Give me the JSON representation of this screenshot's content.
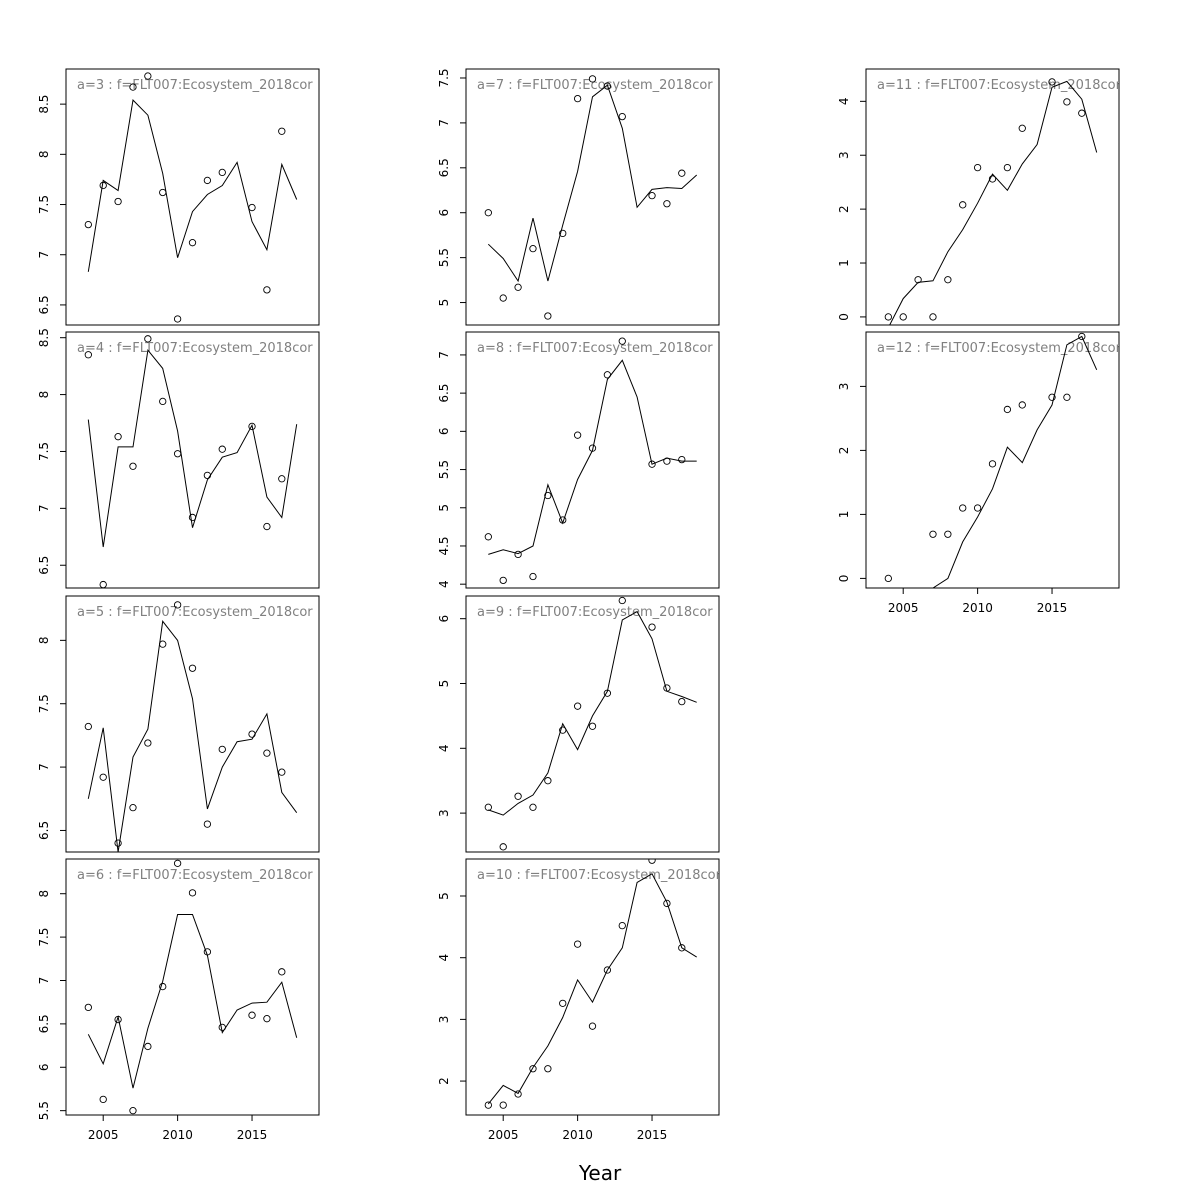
{
  "xlabel": "Year",
  "chart_data": [
    {
      "type": "scatter",
      "title": "a=3  :  f=FLT007:Ecosystem_2018cor",
      "ylim": [
        6.3,
        8.85
      ],
      "yticks": [
        6.5,
        7.0,
        7.5,
        8.0,
        8.5
      ],
      "xlim": [
        2002.5,
        2019.5
      ],
      "xticks": [],
      "points": [
        [
          2004,
          7.3
        ],
        [
          2005,
          7.69
        ],
        [
          2006,
          7.53
        ],
        [
          2007,
          8.67
        ],
        [
          2008,
          8.78
        ],
        [
          2009,
          7.62
        ],
        [
          2010,
          6.36
        ],
        [
          2011,
          7.12
        ],
        [
          2012,
          7.74
        ],
        [
          2013,
          7.82
        ],
        [
          2015,
          7.47
        ],
        [
          2016,
          6.65
        ],
        [
          2017,
          8.23
        ]
      ],
      "fit": [
        [
          2004,
          6.83
        ],
        [
          2005,
          7.74
        ],
        [
          2006,
          7.64
        ],
        [
          2007,
          8.54
        ],
        [
          2008,
          8.39
        ],
        [
          2009,
          7.81
        ],
        [
          2010,
          6.97
        ],
        [
          2011,
          7.43
        ],
        [
          2012,
          7.6
        ],
        [
          2013,
          7.69
        ],
        [
          2014,
          7.92
        ],
        [
          2015,
          7.33
        ],
        [
          2016,
          7.05
        ],
        [
          2017,
          7.9
        ],
        [
          2018,
          7.55
        ]
      ]
    },
    {
      "type": "scatter",
      "title": "a=4  :  f=FLT007:Ecosystem_2018cor",
      "ylim": [
        6.3,
        8.55
      ],
      "yticks": [
        6.5,
        7.0,
        7.5,
        8.0,
        8.5
      ],
      "xlim": [
        2002.5,
        2019.5
      ],
      "xticks": [],
      "points": [
        [
          2004,
          8.35
        ],
        [
          2005,
          6.33
        ],
        [
          2006,
          7.63
        ],
        [
          2007,
          7.37
        ],
        [
          2008,
          8.49
        ],
        [
          2009,
          7.94
        ],
        [
          2010,
          7.48
        ],
        [
          2011,
          6.92
        ],
        [
          2012,
          7.29
        ],
        [
          2013,
          7.52
        ],
        [
          2015,
          7.72
        ],
        [
          2016,
          6.84
        ],
        [
          2017,
          7.26
        ]
      ],
      "fit": [
        [
          2004,
          7.78
        ],
        [
          2005,
          6.66
        ],
        [
          2006,
          7.54
        ],
        [
          2007,
          7.54
        ],
        [
          2008,
          8.39
        ],
        [
          2009,
          8.23
        ],
        [
          2010,
          7.68
        ],
        [
          2011,
          6.83
        ],
        [
          2012,
          7.25
        ],
        [
          2013,
          7.45
        ],
        [
          2014,
          7.49
        ],
        [
          2015,
          7.73
        ],
        [
          2016,
          7.1
        ],
        [
          2017,
          6.92
        ],
        [
          2018,
          7.74
        ]
      ]
    },
    {
      "type": "scatter",
      "title": "a=5  :  f=FLT007:Ecosystem_2018cor",
      "ylim": [
        6.33,
        8.35
      ],
      "yticks": [
        6.5,
        7.0,
        7.5,
        8.0
      ],
      "xlim": [
        2002.5,
        2019.5
      ],
      "xticks": [],
      "points": [
        [
          2004,
          7.32
        ],
        [
          2005,
          6.92
        ],
        [
          2006,
          6.4
        ],
        [
          2007,
          6.68
        ],
        [
          2008,
          7.19
        ],
        [
          2009,
          7.97
        ],
        [
          2010,
          8.28
        ],
        [
          2011,
          7.78
        ],
        [
          2012,
          6.55
        ],
        [
          2013,
          7.14
        ],
        [
          2015,
          7.26
        ],
        [
          2016,
          7.11
        ],
        [
          2017,
          6.96
        ]
      ],
      "fit": [
        [
          2004,
          6.75
        ],
        [
          2005,
          7.31
        ],
        [
          2006,
          6.33
        ],
        [
          2007,
          7.08
        ],
        [
          2008,
          7.3
        ],
        [
          2009,
          8.15
        ],
        [
          2010,
          8.0
        ],
        [
          2011,
          7.54
        ],
        [
          2012,
          6.67
        ],
        [
          2013,
          7.0
        ],
        [
          2014,
          7.2
        ],
        [
          2015,
          7.22
        ],
        [
          2016,
          7.42
        ],
        [
          2017,
          6.8
        ],
        [
          2018,
          6.64
        ]
      ]
    },
    {
      "type": "scatter",
      "title": "a=6  :  f=FLT007:Ecosystem_2018cor",
      "ylim": [
        5.45,
        8.4
      ],
      "yticks": [
        5.5,
        6.0,
        6.5,
        7.0,
        7.5,
        8.0
      ],
      "xlim": [
        2002.5,
        2019.5
      ],
      "xticks": [
        2005,
        2010,
        2015
      ],
      "points": [
        [
          2004,
          6.69
        ],
        [
          2005,
          5.63
        ],
        [
          2006,
          6.55
        ],
        [
          2007,
          5.5
        ],
        [
          2008,
          6.24
        ],
        [
          2009,
          6.93
        ],
        [
          2010,
          8.35
        ],
        [
          2011,
          8.01
        ],
        [
          2012,
          7.33
        ],
        [
          2013,
          6.46
        ],
        [
          2015,
          6.6
        ],
        [
          2016,
          6.56
        ],
        [
          2017,
          7.1
        ]
      ],
      "fit": [
        [
          2004,
          6.38
        ],
        [
          2005,
          6.04
        ],
        [
          2006,
          6.58
        ],
        [
          2007,
          5.76
        ],
        [
          2008,
          6.45
        ],
        [
          2009,
          6.99
        ],
        [
          2010,
          7.76
        ],
        [
          2011,
          7.76
        ],
        [
          2012,
          7.29
        ],
        [
          2013,
          6.4
        ],
        [
          2014,
          6.66
        ],
        [
          2015,
          6.74
        ],
        [
          2016,
          6.75
        ],
        [
          2017,
          6.98
        ],
        [
          2018,
          6.34
        ]
      ]
    },
    {
      "type": "scatter",
      "title": "a=7  :  f=FLT007:Ecosystem_2018cor",
      "ylim": [
        4.75,
        7.6
      ],
      "yticks": [
        5.0,
        5.5,
        6.0,
        6.5,
        7.0,
        7.5
      ],
      "xlim": [
        2002.5,
        2019.5
      ],
      "xticks": [],
      "points": [
        [
          2004,
          6.0
        ],
        [
          2005,
          5.05
        ],
        [
          2006,
          5.17
        ],
        [
          2007,
          5.6
        ],
        [
          2008,
          4.85
        ],
        [
          2009,
          5.77
        ],
        [
          2010,
          7.27
        ],
        [
          2011,
          7.49
        ],
        [
          2012,
          7.41
        ],
        [
          2013,
          7.07
        ],
        [
          2015,
          6.19
        ],
        [
          2016,
          6.1
        ],
        [
          2017,
          6.44
        ]
      ],
      "fit": [
        [
          2004,
          5.65
        ],
        [
          2005,
          5.49
        ],
        [
          2006,
          5.24
        ],
        [
          2007,
          5.94
        ],
        [
          2008,
          5.24
        ],
        [
          2009,
          5.86
        ],
        [
          2010,
          6.46
        ],
        [
          2011,
          7.29
        ],
        [
          2012,
          7.42
        ],
        [
          2013,
          6.94
        ],
        [
          2014,
          6.06
        ],
        [
          2015,
          6.26
        ],
        [
          2016,
          6.28
        ],
        [
          2017,
          6.27
        ],
        [
          2018,
          6.42
        ]
      ]
    },
    {
      "type": "scatter",
      "title": "a=8  :  f=FLT007:Ecosystem_2018cor",
      "ylim": [
        3.95,
        7.3
      ],
      "yticks": [
        4.0,
        4.5,
        5.0,
        5.5,
        6.0,
        6.5,
        7.0
      ],
      "xlim": [
        2002.5,
        2019.5
      ],
      "xticks": [],
      "points": [
        [
          2004,
          4.62
        ],
        [
          2005,
          4.05
        ],
        [
          2006,
          4.39
        ],
        [
          2007,
          4.1
        ],
        [
          2008,
          5.16
        ],
        [
          2009,
          4.84
        ],
        [
          2010,
          5.95
        ],
        [
          2011,
          5.78
        ],
        [
          2012,
          6.74
        ],
        [
          2013,
          7.18
        ],
        [
          2015,
          5.57
        ],
        [
          2016,
          5.61
        ],
        [
          2017,
          5.63
        ]
      ],
      "fit": [
        [
          2004,
          4.39
        ],
        [
          2005,
          4.45
        ],
        [
          2006,
          4.4
        ],
        [
          2007,
          4.5
        ],
        [
          2008,
          5.3
        ],
        [
          2009,
          4.8
        ],
        [
          2010,
          5.37
        ],
        [
          2011,
          5.75
        ],
        [
          2012,
          6.68
        ],
        [
          2013,
          6.93
        ],
        [
          2014,
          6.45
        ],
        [
          2015,
          5.57
        ],
        [
          2016,
          5.65
        ],
        [
          2017,
          5.61
        ],
        [
          2018,
          5.61
        ]
      ]
    },
    {
      "type": "scatter",
      "title": "a=9  :  f=FLT007:Ecosystem_2018cor",
      "ylim": [
        2.4,
        6.35
      ],
      "yticks": [
        3,
        4,
        5,
        6
      ],
      "xlim": [
        2002.5,
        2019.5
      ],
      "xticks": [],
      "points": [
        [
          2004,
          3.09
        ],
        [
          2005,
          2.48
        ],
        [
          2006,
          3.26
        ],
        [
          2007,
          3.09
        ],
        [
          2008,
          3.5
        ],
        [
          2009,
          4.28
        ],
        [
          2010,
          4.65
        ],
        [
          2011,
          4.34
        ],
        [
          2012,
          4.85
        ],
        [
          2013,
          6.28
        ],
        [
          2015,
          5.87
        ],
        [
          2016,
          4.93
        ],
        [
          2017,
          4.72
        ]
      ],
      "fit": [
        [
          2004,
          3.05
        ],
        [
          2005,
          2.97
        ],
        [
          2006,
          3.15
        ],
        [
          2007,
          3.28
        ],
        [
          2008,
          3.62
        ],
        [
          2009,
          4.38
        ],
        [
          2010,
          3.98
        ],
        [
          2011,
          4.5
        ],
        [
          2012,
          4.88
        ],
        [
          2013,
          5.98
        ],
        [
          2014,
          6.11
        ],
        [
          2015,
          5.69
        ],
        [
          2016,
          4.88
        ],
        [
          2017,
          4.8
        ],
        [
          2018,
          4.71
        ]
      ]
    },
    {
      "type": "scatter",
      "title": "a=10  :  f=FLT007:Ecosystem_2018cor",
      "ylim": [
        1.45,
        5.6
      ],
      "yticks": [
        2,
        3,
        4,
        5
      ],
      "xlim": [
        2002.5,
        2019.5
      ],
      "xticks": [
        2005,
        2010,
        2015
      ],
      "points": [
        [
          2004,
          1.61
        ],
        [
          2005,
          1.61
        ],
        [
          2006,
          1.79
        ],
        [
          2007,
          2.2
        ],
        [
          2008,
          2.2
        ],
        [
          2009,
          3.26
        ],
        [
          2010,
          4.22
        ],
        [
          2011,
          2.89
        ],
        [
          2012,
          3.8
        ],
        [
          2013,
          4.52
        ],
        [
          2015,
          5.58
        ],
        [
          2016,
          4.88
        ],
        [
          2017,
          4.16
        ]
      ],
      "fit": [
        [
          2004,
          1.63
        ],
        [
          2005,
          1.93
        ],
        [
          2006,
          1.8
        ],
        [
          2007,
          2.22
        ],
        [
          2008,
          2.57
        ],
        [
          2009,
          3.03
        ],
        [
          2010,
          3.64
        ],
        [
          2011,
          3.28
        ],
        [
          2012,
          3.8
        ],
        [
          2013,
          4.16
        ],
        [
          2014,
          5.22
        ],
        [
          2015,
          5.36
        ],
        [
          2016,
          4.9
        ],
        [
          2017,
          4.16
        ],
        [
          2018,
          4.01
        ]
      ]
    },
    {
      "type": "scatter",
      "title": "a=11  :  f=FLT007:Ecosystem_2018cor",
      "ylim": [
        -0.15,
        4.6
      ],
      "yticks": [
        0,
        1,
        2,
        3,
        4
      ],
      "xlim": [
        2002.5,
        2019.5
      ],
      "xticks": [],
      "points": [
        [
          2004,
          0.0
        ],
        [
          2005,
          0.0
        ],
        [
          2006,
          0.69
        ],
        [
          2007,
          0.0
        ],
        [
          2008,
          0.69
        ],
        [
          2009,
          2.08
        ],
        [
          2010,
          2.77
        ],
        [
          2011,
          2.56
        ],
        [
          2012,
          2.77
        ],
        [
          2013,
          3.5
        ],
        [
          2015,
          4.36
        ],
        [
          2016,
          3.99
        ],
        [
          2017,
          3.78
        ]
      ],
      "fit": [
        [
          2004,
          -0.2
        ],
        [
          2005,
          0.34
        ],
        [
          2006,
          0.64
        ],
        [
          2007,
          0.67
        ],
        [
          2008,
          1.21
        ],
        [
          2009,
          1.62
        ],
        [
          2010,
          2.11
        ],
        [
          2011,
          2.65
        ],
        [
          2012,
          2.35
        ],
        [
          2013,
          2.84
        ],
        [
          2014,
          3.2
        ],
        [
          2015,
          4.26
        ],
        [
          2016,
          4.37
        ],
        [
          2017,
          4.04
        ],
        [
          2018,
          3.05
        ]
      ]
    },
    {
      "type": "scatter",
      "title": "a=12  :  f=FLT007:Ecosystem_2018cor",
      "ylim": [
        -0.15,
        3.85
      ],
      "yticks": [
        0,
        1,
        2,
        3
      ],
      "xlim": [
        2002.5,
        2019.5
      ],
      "xticks": [
        2005,
        2010,
        2015
      ],
      "points": [
        [
          2004,
          0.0
        ],
        [
          2007,
          0.69
        ],
        [
          2008,
          0.69
        ],
        [
          2009,
          1.1
        ],
        [
          2010,
          1.1
        ],
        [
          2011,
          1.79
        ],
        [
          2012,
          2.64
        ],
        [
          2013,
          2.71
        ],
        [
          2015,
          2.83
        ],
        [
          2016,
          2.83
        ],
        [
          2017,
          3.78
        ]
      ],
      "fit": [
        [
          2007,
          -0.15
        ],
        [
          2008,
          0.0
        ],
        [
          2009,
          0.57
        ],
        [
          2010,
          0.96
        ],
        [
          2011,
          1.4
        ],
        [
          2012,
          2.05
        ],
        [
          2013,
          1.81
        ],
        [
          2014,
          2.32
        ],
        [
          2015,
          2.71
        ],
        [
          2016,
          3.65
        ],
        [
          2017,
          3.78
        ],
        [
          2018,
          3.26
        ]
      ]
    }
  ]
}
